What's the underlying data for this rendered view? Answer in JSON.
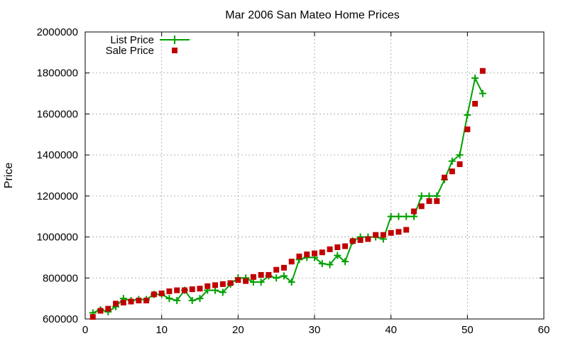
{
  "chart_data": {
    "type": "line",
    "title": "Mar 2006 San Mateo Home Prices",
    "xlabel": "",
    "ylabel": "Price",
    "xlim": [
      0,
      60
    ],
    "ylim": [
      600000,
      2000000
    ],
    "xticks": [
      0,
      10,
      20,
      30,
      40,
      50,
      60
    ],
    "yticks": [
      600000,
      800000,
      1000000,
      1200000,
      1400000,
      1600000,
      1800000,
      2000000
    ],
    "grid": true,
    "legend_position": "top-left",
    "series": [
      {
        "name": "List Price",
        "style": "line+cross",
        "color": "#00a000",
        "x": [
          1,
          2,
          3,
          4,
          5,
          6,
          7,
          8,
          9,
          10,
          11,
          12,
          13,
          14,
          15,
          16,
          17,
          18,
          19,
          20,
          21,
          22,
          23,
          24,
          25,
          26,
          27,
          28,
          29,
          30,
          31,
          32,
          33,
          34,
          35,
          36,
          37,
          38,
          39,
          40,
          41,
          42,
          43,
          44,
          45,
          46,
          47,
          48,
          49,
          50,
          51,
          52
        ],
        "y": [
          630000,
          645000,
          635000,
          660000,
          700000,
          690000,
          695000,
          695000,
          720000,
          720000,
          700000,
          690000,
          740000,
          690000,
          700000,
          740000,
          740000,
          730000,
          770000,
          800000,
          800000,
          780000,
          780000,
          810000,
          800000,
          810000,
          780000,
          890000,
          900000,
          900000,
          870000,
          865000,
          910000,
          880000,
          980000,
          1000000,
          1000000,
          1000000,
          990000,
          1100000,
          1100000,
          1100000,
          1100000,
          1200000,
          1200000,
          1200000,
          1280000,
          1370000,
          1400000,
          1595000,
          1775000,
          1700000
        ]
      },
      {
        "name": "Sale Price",
        "style": "square",
        "color": "#c00000",
        "x": [
          1,
          2,
          3,
          4,
          5,
          6,
          7,
          8,
          9,
          10,
          11,
          12,
          13,
          14,
          15,
          16,
          17,
          18,
          19,
          20,
          21,
          22,
          23,
          24,
          25,
          26,
          27,
          28,
          29,
          30,
          31,
          32,
          33,
          34,
          35,
          36,
          37,
          38,
          39,
          40,
          41,
          42,
          43,
          44,
          45,
          46,
          47,
          48,
          49,
          50,
          51,
          52
        ],
        "y": [
          610000,
          640000,
          650000,
          675000,
          680000,
          685000,
          690000,
          690000,
          720000,
          725000,
          735000,
          740000,
          740000,
          745000,
          748000,
          760000,
          765000,
          770000,
          775000,
          790000,
          785000,
          805000,
          815000,
          815000,
          840000,
          850000,
          880000,
          905000,
          915000,
          920000,
          925000,
          940000,
          950000,
          955000,
          980000,
          985000,
          990000,
          1010000,
          1010000,
          1020000,
          1025000,
          1035000,
          1125000,
          1150000,
          1175000,
          1175000,
          1290000,
          1320000,
          1355000,
          1525000,
          1650000,
          1810000
        ]
      }
    ]
  }
}
